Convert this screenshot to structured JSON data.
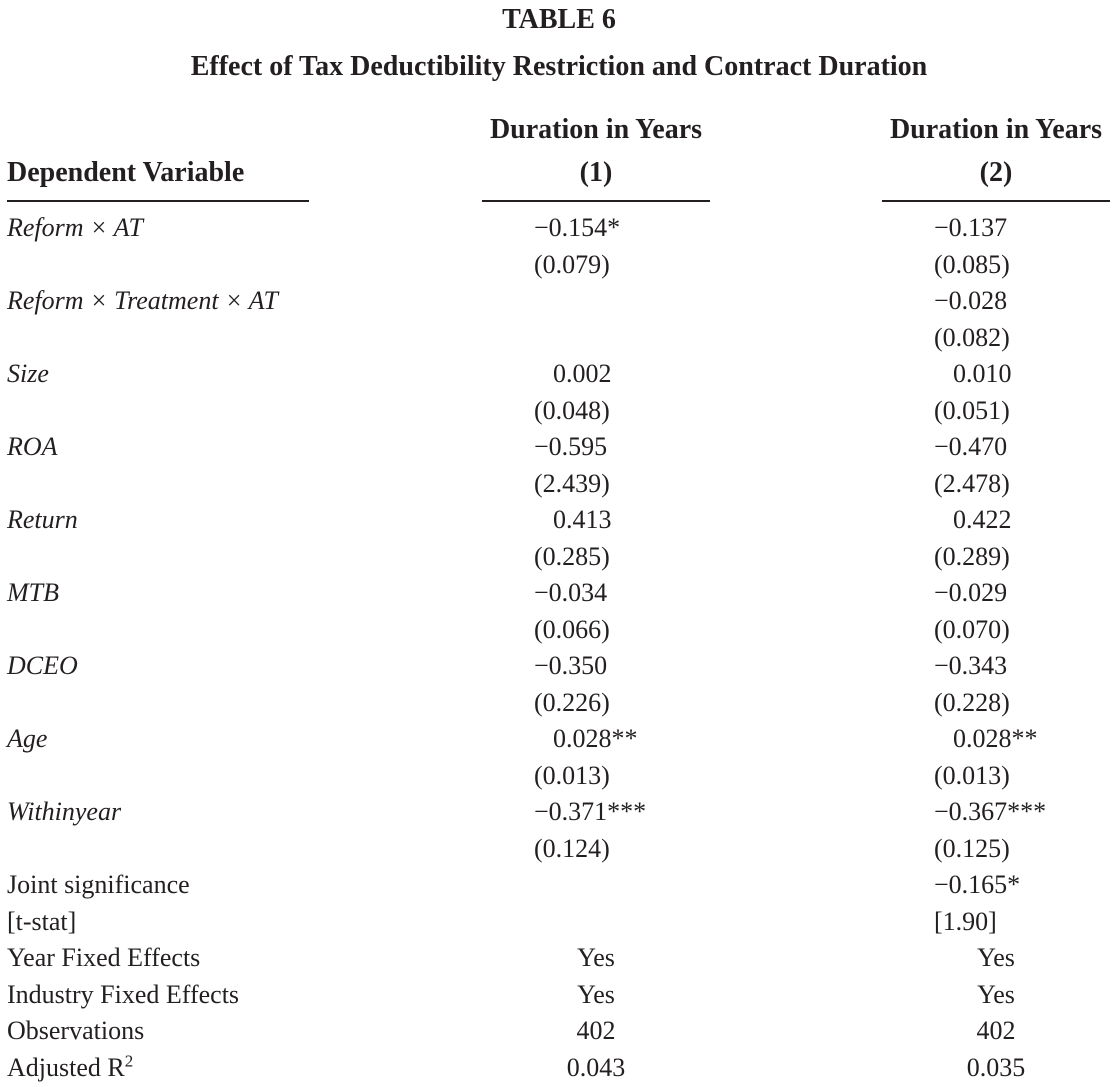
{
  "table_number": "TABLE 6",
  "title": "Effect of Tax Deductibility Restriction and Contract Duration",
  "header": {
    "dependent_variable": "Dependent Variable",
    "columns": [
      {
        "title": "Duration in Years",
        "number": "(1)"
      },
      {
        "title": "Duration in Years",
        "number": "(2)"
      }
    ]
  },
  "rows": [
    {
      "label": "Reform × AT",
      "italic": true,
      "c1": "−0.154*",
      "c2": "−0.137"
    },
    {
      "label": "",
      "italic": false,
      "c1": "(0.079)",
      "c2": "(0.085)"
    },
    {
      "label": "Reform × Treatment × AT",
      "italic": true,
      "c1": "",
      "c2": "−0.028"
    },
    {
      "label": "",
      "italic": false,
      "c1": "",
      "c2": "(0.082)"
    },
    {
      "label": "Size",
      "italic": true,
      "c1": "0.002",
      "c2": "0.010"
    },
    {
      "label": "",
      "italic": false,
      "c1": "(0.048)",
      "c2": "(0.051)"
    },
    {
      "label": "ROA",
      "italic": true,
      "c1": "−0.595",
      "c2": "−0.470"
    },
    {
      "label": "",
      "italic": false,
      "c1": "(2.439)",
      "c2": "(2.478)"
    },
    {
      "label": "Return",
      "italic": true,
      "c1": "0.413",
      "c2": "0.422"
    },
    {
      "label": "",
      "italic": false,
      "c1": "(0.285)",
      "c2": "(0.289)"
    },
    {
      "label": "MTB",
      "italic": true,
      "c1": "−0.034",
      "c2": "−0.029"
    },
    {
      "label": "",
      "italic": false,
      "c1": "(0.066)",
      "c2": "(0.070)"
    },
    {
      "label": "DCEO",
      "italic": true,
      "c1": "−0.350",
      "c2": "−0.343"
    },
    {
      "label": "",
      "italic": false,
      "c1": "(0.226)",
      "c2": "(0.228)"
    },
    {
      "label": "Age",
      "italic": true,
      "c1": "0.028**",
      "c2": "0.028**"
    },
    {
      "label": "",
      "italic": false,
      "c1": "(0.013)",
      "c2": "(0.013)"
    },
    {
      "label": "Withinyear",
      "italic": true,
      "c1": "−0.371***",
      "c2": "−0.367***"
    },
    {
      "label": "",
      "italic": false,
      "c1": "(0.124)",
      "c2": "(0.125)"
    },
    {
      "label": "Joint significance",
      "italic": false,
      "c1": "",
      "c2": "−0.165*"
    },
    {
      "label": "[t-stat]",
      "italic": false,
      "c1": "",
      "c2": "[1.90]"
    },
    {
      "label": "Year Fixed Effects",
      "italic": false,
      "c1": "Yes",
      "c2": "Yes",
      "center": true
    },
    {
      "label": "Industry Fixed Effects",
      "italic": false,
      "c1": "Yes",
      "c2": "Yes",
      "center": true
    },
    {
      "label": "Observations",
      "italic": false,
      "c1": "402",
      "c2": "402",
      "center": true
    },
    {
      "label": "Adjusted R",
      "label_sup": "2",
      "italic": false,
      "c1": "0.043",
      "c2": "0.035",
      "center": true
    }
  ]
}
